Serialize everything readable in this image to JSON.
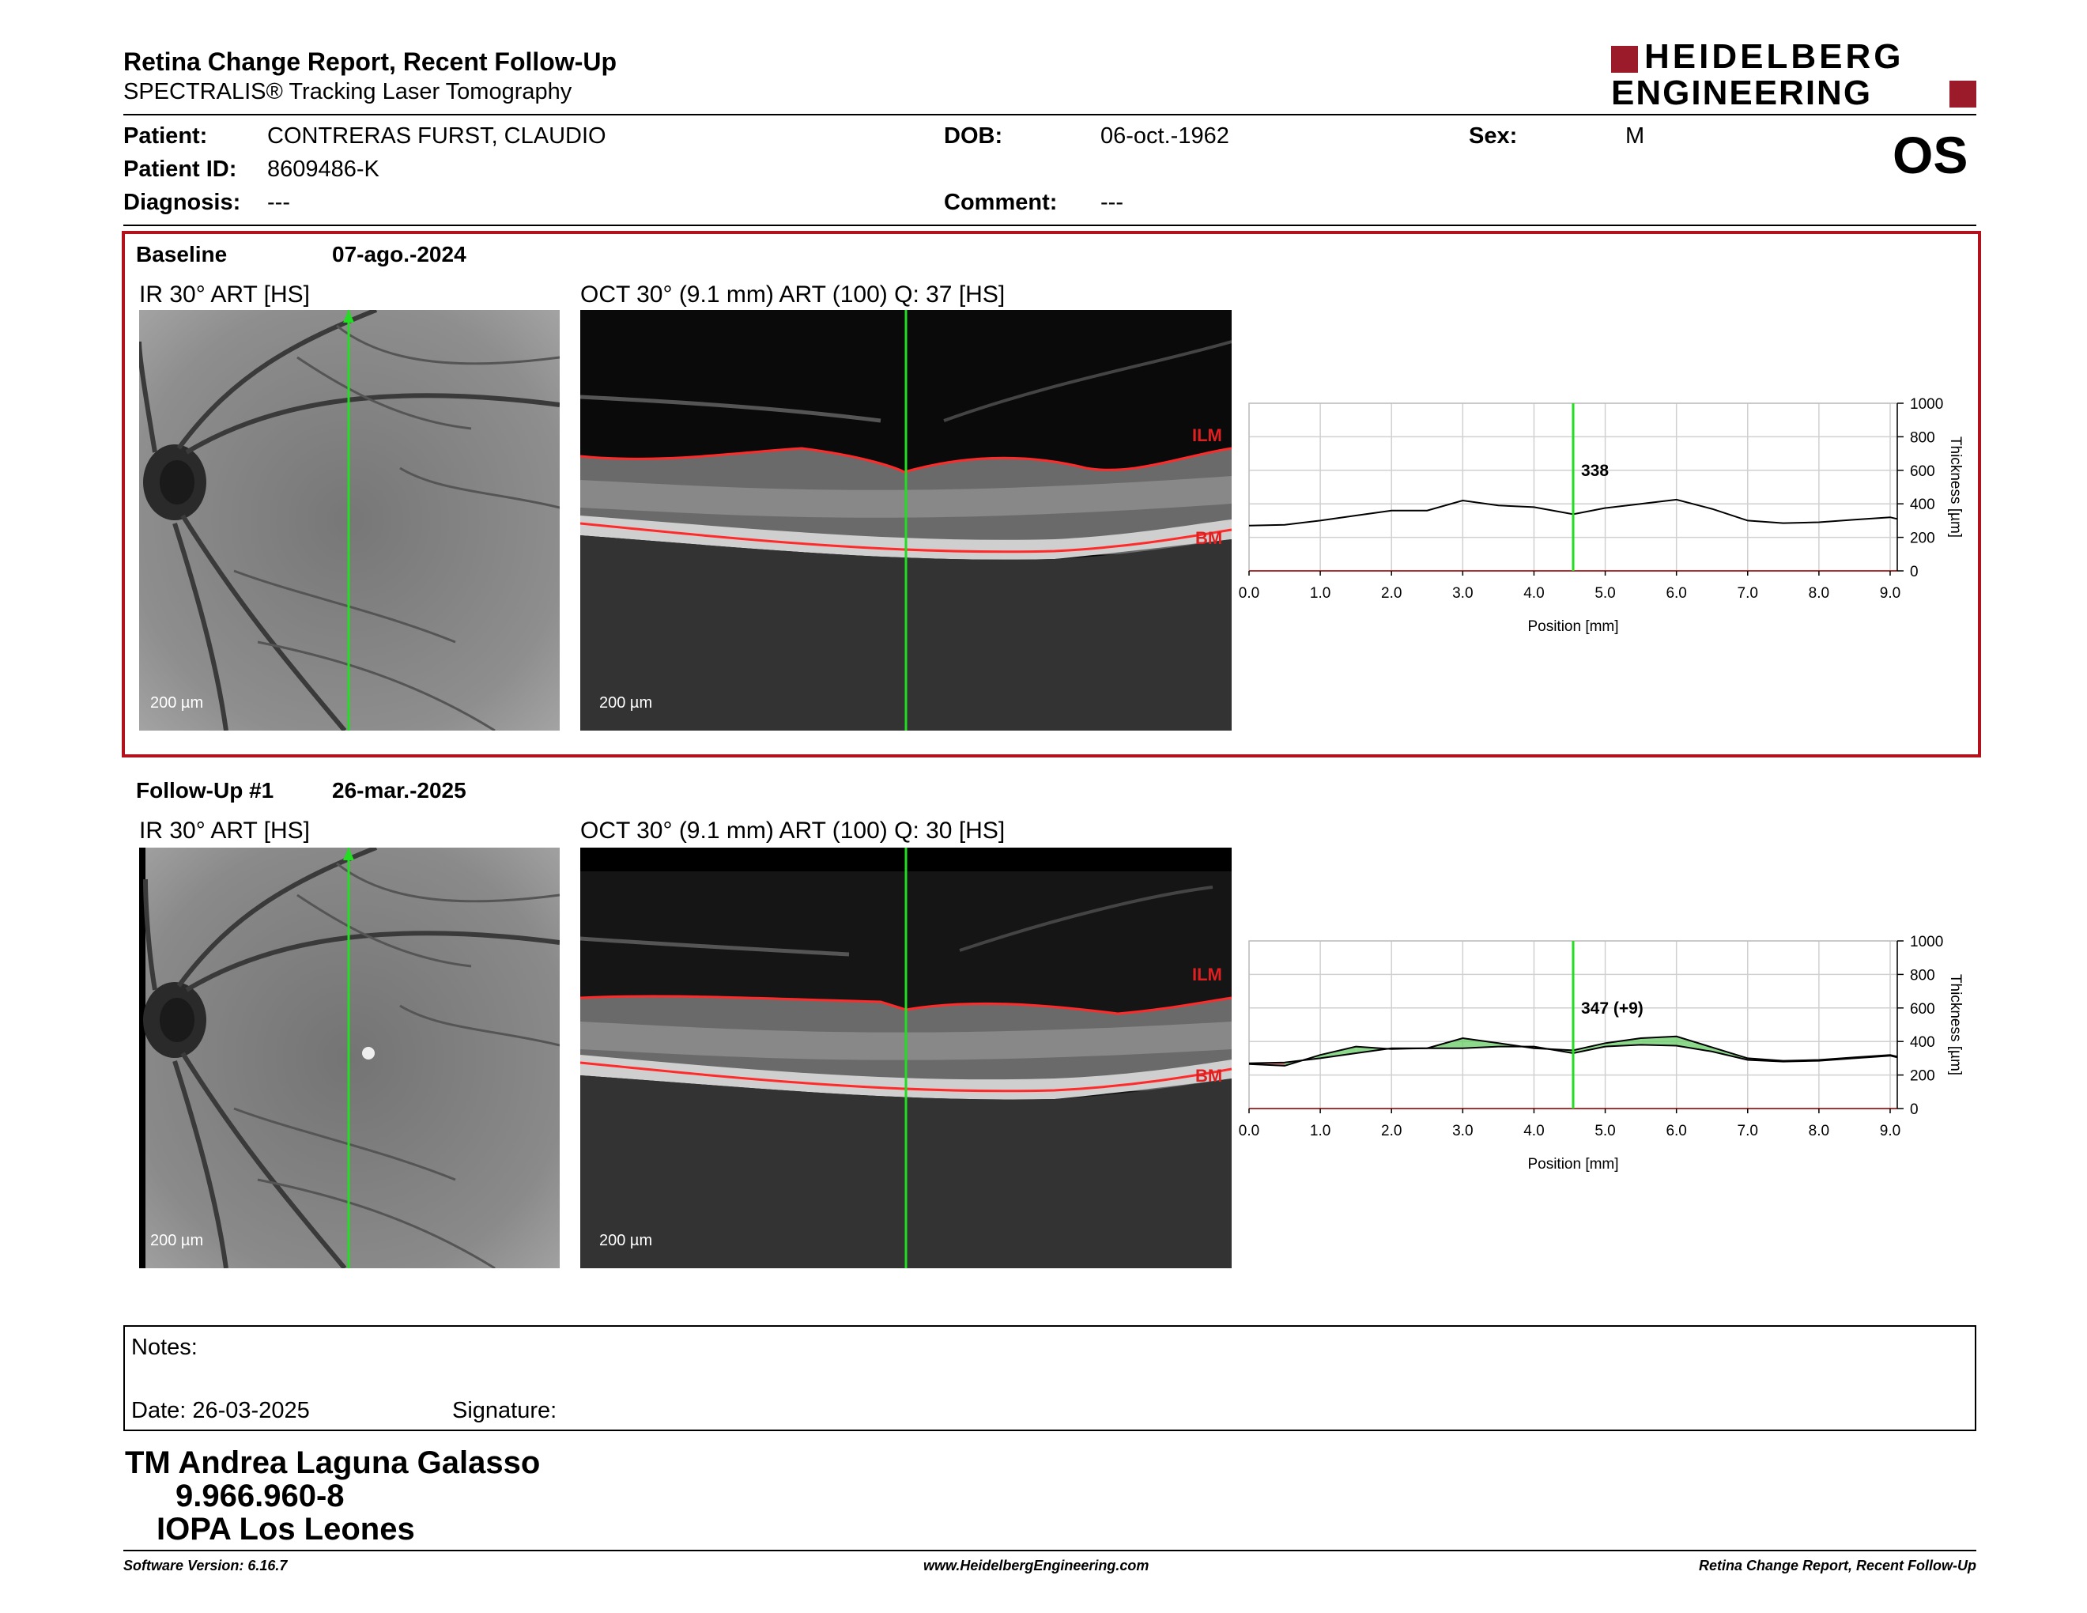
{
  "header": {
    "title": "Retina Change Report, Recent Follow-Up",
    "subtitle": "SPECTRALIS® Tracking Laser Tomography",
    "logo_line1": "HEIDELBERG",
    "logo_line2": "ENGINEERING",
    "eye": "OS",
    "logo_color": "#9b1b2a"
  },
  "patient": {
    "patient_label": "Patient:",
    "patient_value": "CONTRERAS FURST, CLAUDIO",
    "id_label": "Patient ID:",
    "id_value": "8609486-K",
    "diagnosis_label": "Diagnosis:",
    "diagnosis_value": "---",
    "dob_label": "DOB:",
    "dob_value": "06-oct.-1962",
    "comment_label": "Comment:",
    "comment_value": "---",
    "sex_label": "Sex:",
    "sex_value": "M"
  },
  "baseline": {
    "name": "Baseline",
    "date": "07-ago.-2024",
    "ir_label": "IR 30° ART [HS]",
    "oct_label": "OCT 30° (9.1 mm) ART (100) Q: 37 [HS]",
    "ir_scale": "200 µm",
    "oct_scale": "200 µm",
    "ilm_label": "ILM",
    "bm_label": "BM",
    "thickness_value": "338",
    "box_color": "#b3121d"
  },
  "followup": {
    "name": "Follow-Up #1",
    "date": "26-mar.-2025",
    "ir_label": "IR 30° ART [HS]",
    "oct_label": "OCT 30° (9.1 mm) ART (100) Q: 30 [HS]",
    "ir_scale": "200 µm",
    "oct_scale": "200 µm",
    "ilm_label": "ILM",
    "bm_label": "BM",
    "thickness_value": "347 (+9)"
  },
  "chart_data": [
    {
      "type": "line",
      "xlabel": "Position [mm]",
      "ylabel": "Thickness [µm]",
      "xlim": [
        0,
        9.1
      ],
      "ylim": [
        0,
        1000
      ],
      "x_ticks": [
        "0.0",
        "1.0",
        "2.0",
        "3.0",
        "4.0",
        "5.0",
        "6.0",
        "7.0",
        "8.0",
        "9.0"
      ],
      "y_ticks": [
        "0",
        "200",
        "400",
        "600",
        "800",
        "1000"
      ],
      "grid": true,
      "cursor_x": 4.55,
      "cursor_label": "338",
      "series": [
        {
          "x": [
            0,
            0.5,
            1.0,
            1.5,
            2.0,
            2.5,
            3.0,
            3.5,
            4.0,
            4.55,
            5.0,
            5.5,
            6.0,
            6.5,
            7.0,
            7.5,
            8.0,
            8.5,
            9.0,
            9.1
          ],
          "values": [
            270,
            275,
            300,
            330,
            360,
            360,
            420,
            390,
            380,
            338,
            375,
            400,
            425,
            370,
            300,
            285,
            290,
            305,
            320,
            310
          ]
        }
      ]
    },
    {
      "type": "line",
      "xlabel": "Position [mm]",
      "ylabel": "Thickness [µm]",
      "xlim": [
        0,
        9.1
      ],
      "ylim": [
        0,
        1000
      ],
      "x_ticks": [
        "0.0",
        "1.0",
        "2.0",
        "3.0",
        "4.0",
        "5.0",
        "6.0",
        "7.0",
        "8.0",
        "9.0"
      ],
      "y_ticks": [
        "0",
        "200",
        "400",
        "600",
        "800",
        "1000"
      ],
      "grid": true,
      "cursor_x": 4.55,
      "cursor_label": "347 (+9)",
      "increase_color": "#66cc66",
      "decrease_color": "#cc5555",
      "series": [
        {
          "x": [
            0,
            0.5,
            1.0,
            1.5,
            2.0,
            2.5,
            3.0,
            3.5,
            4.0,
            4.55,
            5.0,
            5.5,
            6.0,
            6.5,
            7.0,
            7.5,
            8.0,
            8.5,
            9.0,
            9.1
          ],
          "values": [
            270,
            275,
            300,
            330,
            360,
            360,
            360,
            370,
            370,
            330,
            370,
            380,
            375,
            340,
            290,
            280,
            285,
            300,
            315,
            305
          ]
        },
        {
          "x": [
            0,
            0.5,
            1.0,
            1.5,
            2.0,
            2.5,
            3.0,
            3.5,
            4.0,
            4.55,
            5.0,
            5.5,
            6.0,
            6.5,
            7.0,
            7.5,
            8.0,
            8.5,
            9.0,
            9.1
          ],
          "values": [
            265,
            255,
            320,
            370,
            355,
            360,
            420,
            390,
            360,
            347,
            390,
            420,
            430,
            365,
            300,
            285,
            290,
            305,
            320,
            310
          ]
        }
      ]
    }
  ],
  "notes": {
    "notes_label": "Notes:",
    "date_label": "Date: 26-03-2025",
    "signature_label": "Signature:"
  },
  "signature": {
    "name": "TM Andrea Laguna Galasso",
    "rut": "9.966.960-8",
    "place": "IOPA Los Leones"
  },
  "footer": {
    "software": "Software Version: 6.16.7",
    "website": "www.HeidelbergEngineering.com",
    "report_name": "Retina Change Report, Recent Follow-Up"
  }
}
